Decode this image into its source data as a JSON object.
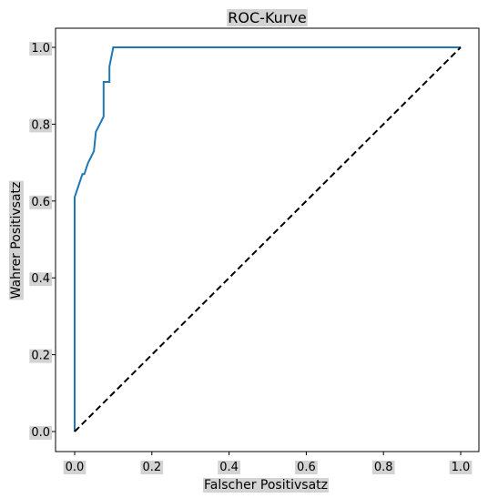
{
  "chart_data": {
    "type": "line",
    "title": "ROC-Kurve",
    "xlabel": "Falscher Positivsatz",
    "ylabel": "Wahrer Positivsatz",
    "xlim": [
      0.0,
      1.0
    ],
    "ylim": [
      0.0,
      1.0
    ],
    "xticks": [
      "0.0",
      "0.2",
      "0.4",
      "0.6",
      "0.8",
      "1.0"
    ],
    "yticks": [
      "0.0",
      "0.2",
      "0.4",
      "0.6",
      "0.8",
      "1.0"
    ],
    "grid": false,
    "legend": "none",
    "series": [
      {
        "style": "solid",
        "color": "#1f77b4",
        "x": [
          0.0,
          0.0,
          0.0,
          0.02,
          0.025,
          0.035,
          0.04,
          0.05,
          0.055,
          0.065,
          0.075,
          0.075,
          0.08,
          0.08,
          0.09,
          0.09,
          0.1,
          0.1,
          1.0
        ],
        "y": [
          0.0,
          0.61,
          0.61,
          0.67,
          0.67,
          0.7,
          0.71,
          0.73,
          0.78,
          0.8,
          0.82,
          0.91,
          0.91,
          0.91,
          0.91,
          0.95,
          1.0,
          1.0,
          1.0
        ]
      },
      {
        "style": "dashed",
        "color": "#000000",
        "x": [
          0.0,
          1.0
        ],
        "y": [
          0.0,
          1.0
        ]
      }
    ]
  }
}
